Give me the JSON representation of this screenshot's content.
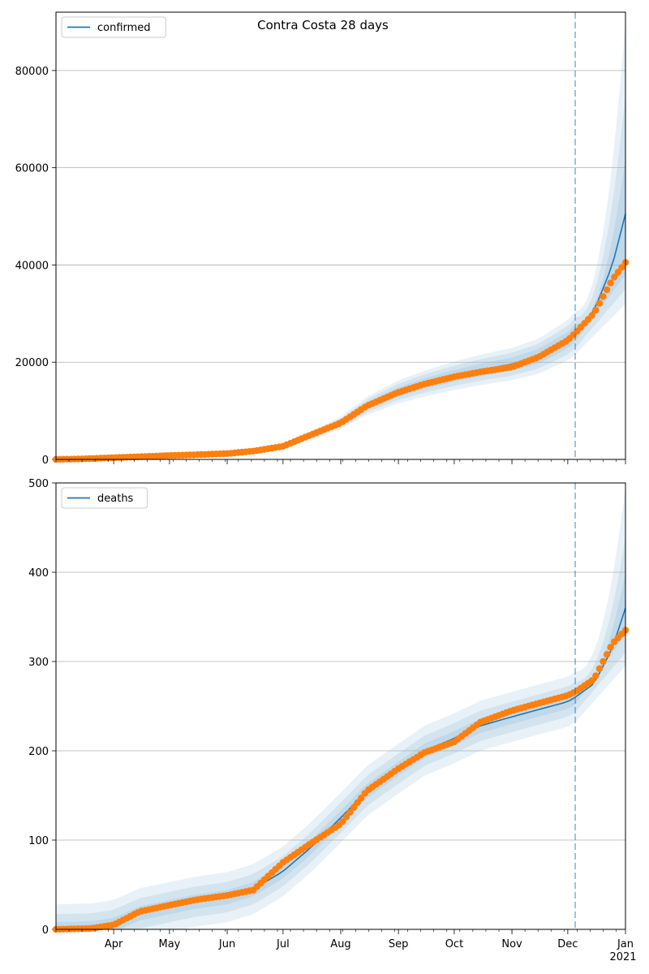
{
  "title": "Contra Costa 28 days",
  "chart_data": [
    {
      "type": "line",
      "legend": {
        "label": "confirmed",
        "placement": "top-left"
      },
      "ylim": [
        0,
        92000
      ],
      "yticks": [
        0,
        20000,
        40000,
        60000,
        80000
      ],
      "grid": "horizontal",
      "vline_date": "2020-12-05",
      "observed": {
        "x": [
          "2020-03-01",
          "2020-03-15",
          "2020-04-01",
          "2020-04-15",
          "2020-05-01",
          "2020-05-15",
          "2020-06-01",
          "2020-06-15",
          "2020-07-01",
          "2020-07-15",
          "2020-08-01",
          "2020-08-15",
          "2020-09-01",
          "2020-09-15",
          "2020-10-01",
          "2020-10-15",
          "2020-11-01",
          "2020-11-15",
          "2020-12-01",
          "2020-12-05",
          "2020-12-15",
          "2020-12-25",
          "2021-01-01"
        ],
        "y": [
          0,
          100,
          350,
          550,
          800,
          950,
          1200,
          1700,
          2700,
          4900,
          7500,
          11000,
          13800,
          15500,
          17000,
          18000,
          19000,
          21000,
          24500,
          26000,
          30000,
          37000,
          40500
        ]
      },
      "forecast_median": {
        "x": [
          "2020-03-01",
          "2020-04-01",
          "2020-05-01",
          "2020-06-01",
          "2020-07-01",
          "2020-07-15",
          "2020-08-01",
          "2020-08-15",
          "2020-09-01",
          "2020-09-15",
          "2020-10-01",
          "2020-10-15",
          "2020-11-01",
          "2020-11-15",
          "2020-12-01",
          "2020-12-05",
          "2020-12-15",
          "2020-12-25",
          "2021-01-01"
        ],
        "y": [
          0,
          350,
          800,
          1200,
          2600,
          4800,
          7500,
          11000,
          13900,
          15600,
          17200,
          18400,
          19600,
          21200,
          24500,
          26000,
          30500,
          40000,
          50500
        ]
      },
      "bands": [
        {
          "lower_factor": 0.93,
          "upper_factor": 1.07,
          "end_low": 38000,
          "end_high": 62000
        },
        {
          "lower_factor": 0.88,
          "upper_factor": 1.12,
          "end_low": 35000,
          "end_high": 75000
        },
        {
          "lower_factor": 0.83,
          "upper_factor": 1.17,
          "end_low": 32000,
          "end_high": 90000
        }
      ]
    },
    {
      "type": "line",
      "legend": {
        "label": "deaths",
        "placement": "top-left"
      },
      "ylim": [
        0,
        500
      ],
      "yticks": [
        0,
        100,
        200,
        300,
        400,
        500
      ],
      "grid": "horizontal",
      "vline_date": "2020-12-05",
      "observed": {
        "x": [
          "2020-03-01",
          "2020-03-20",
          "2020-04-01",
          "2020-04-15",
          "2020-05-01",
          "2020-05-15",
          "2020-06-01",
          "2020-06-15",
          "2020-07-01",
          "2020-07-15",
          "2020-08-01",
          "2020-08-15",
          "2020-09-01",
          "2020-09-15",
          "2020-10-01",
          "2020-10-15",
          "2020-11-01",
          "2020-11-15",
          "2020-12-01",
          "2020-12-05",
          "2020-12-15",
          "2020-12-25",
          "2021-01-01"
        ],
        "y": [
          0,
          1,
          5,
          20,
          27,
          33,
          38,
          44,
          75,
          95,
          118,
          155,
          180,
          198,
          210,
          232,
          245,
          253,
          262,
          266,
          280,
          320,
          335
        ]
      },
      "forecast_median": {
        "x": [
          "2020-03-01",
          "2020-03-20",
          "2020-04-01",
          "2020-04-15",
          "2020-05-01",
          "2020-05-15",
          "2020-06-01",
          "2020-06-15",
          "2020-07-01",
          "2020-07-15",
          "2020-08-01",
          "2020-08-15",
          "2020-09-01",
          "2020-09-15",
          "2020-10-01",
          "2020-10-15",
          "2020-11-01",
          "2020-11-15",
          "2020-12-01",
          "2020-12-05",
          "2020-12-15",
          "2020-12-25",
          "2021-01-01"
        ],
        "y": [
          0,
          1,
          5,
          18,
          25,
          31,
          36,
          45,
          65,
          90,
          125,
          155,
          180,
          200,
          214,
          228,
          238,
          246,
          255,
          260,
          275,
          315,
          360
        ]
      },
      "bands": [
        {
          "lower_offset": -8,
          "upper_offset": 8,
          "end_low": 330,
          "end_high": 400
        },
        {
          "lower_offset": -17,
          "upper_offset": 17,
          "end_low": 310,
          "end_high": 440
        },
        {
          "lower_offset": -28,
          "upper_offset": 28,
          "end_low": 295,
          "end_high": 495
        }
      ]
    }
  ],
  "x_axis": {
    "range": [
      "2020-03-01",
      "2021-01-01"
    ],
    "ticks": [
      {
        "date": "2020-04-01",
        "label": "Apr"
      },
      {
        "date": "2020-05-01",
        "label": "May"
      },
      {
        "date": "2020-06-01",
        "label": "Jun"
      },
      {
        "date": "2020-07-01",
        "label": "Jul"
      },
      {
        "date": "2020-08-01",
        "label": "Aug"
      },
      {
        "date": "2020-09-01",
        "label": "Sep"
      },
      {
        "date": "2020-10-01",
        "label": "Oct"
      },
      {
        "date": "2020-11-01",
        "label": "Nov"
      },
      {
        "date": "2020-12-01",
        "label": "Dec"
      },
      {
        "date": "2021-01-01",
        "label": "Jan"
      }
    ],
    "year_label": "2021"
  },
  "colors": {
    "forecast": "#1f77b4",
    "observed": "#ff7f0e",
    "band": "#1f77b4",
    "grid": "#b0b0b0",
    "vline": "#1f77b4"
  }
}
